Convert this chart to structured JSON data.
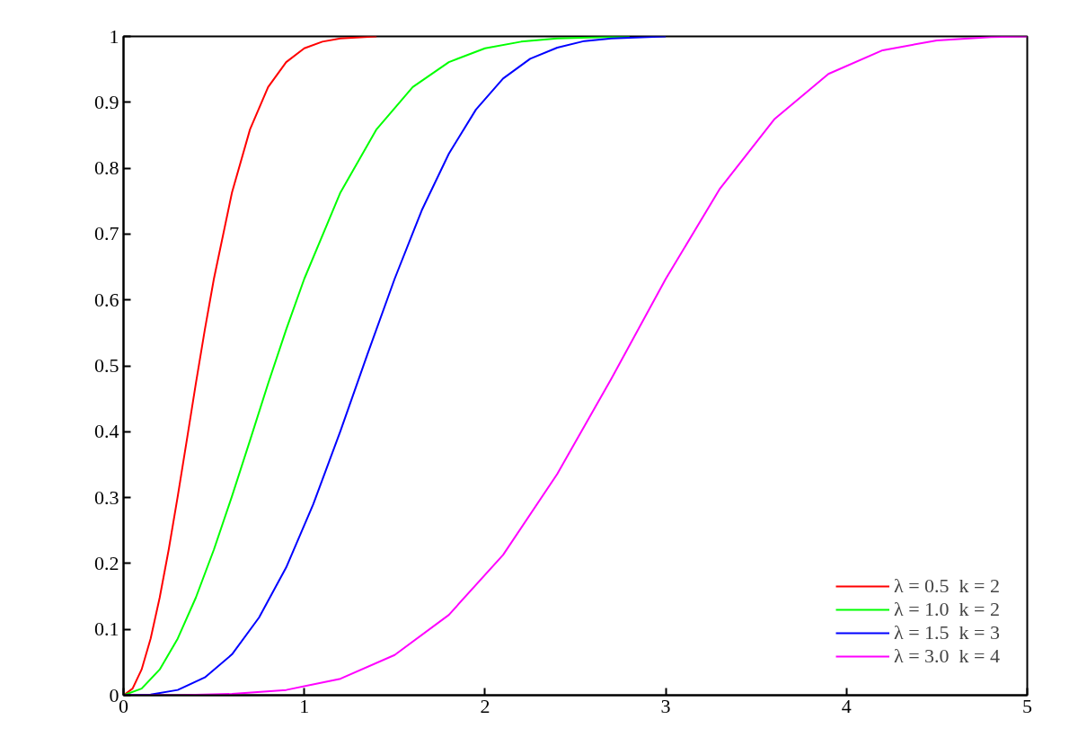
{
  "chart_data": {
    "type": "line",
    "xlim": [
      0,
      5
    ],
    "ylim": [
      0,
      1
    ],
    "xticks": [
      0,
      1,
      2,
      3,
      4,
      5
    ],
    "yticks": [
      0,
      0.1,
      0.2,
      0.3,
      0.4,
      0.5,
      0.6,
      0.7,
      0.8,
      0.9,
      1
    ],
    "grid": false,
    "legend": "bottom right",
    "marker": "none",
    "line_style": "solid",
    "series": [
      {
        "name": "λ = 0.5  k = 2",
        "color": "#ff0000",
        "x": [
          0,
          0.05,
          0.1,
          0.15,
          0.2,
          0.25,
          0.3,
          0.35,
          0.4,
          0.45,
          0.5,
          0.6,
          0.7,
          0.8,
          0.9,
          1.0,
          1.1,
          1.2,
          1.4
        ],
        "values": [
          0,
          0.01,
          0.039,
          0.086,
          0.148,
          0.221,
          0.302,
          0.387,
          0.473,
          0.555,
          0.632,
          0.763,
          0.859,
          0.923,
          0.961,
          0.982,
          0.992,
          0.997,
          1.0
        ]
      },
      {
        "name": "λ = 1.0  k = 2",
        "color": "#00ff00",
        "x": [
          0,
          0.1,
          0.2,
          0.3,
          0.4,
          0.5,
          0.6,
          0.7,
          0.8,
          0.9,
          1.0,
          1.2,
          1.4,
          1.6,
          1.8,
          2.0,
          2.2,
          2.4,
          2.8
        ],
        "values": [
          0,
          0.01,
          0.039,
          0.086,
          0.148,
          0.221,
          0.302,
          0.387,
          0.473,
          0.555,
          0.632,
          0.763,
          0.859,
          0.923,
          0.961,
          0.982,
          0.992,
          0.997,
          1.0
        ]
      },
      {
        "name": "λ = 1.5  k = 3",
        "color": "#0000ff",
        "x": [
          0,
          0.15,
          0.3,
          0.45,
          0.6,
          0.75,
          0.9,
          1.05,
          1.2,
          1.35,
          1.5,
          1.65,
          1.8,
          1.95,
          2.1,
          2.25,
          2.4,
          2.55,
          2.7,
          3.0
        ],
        "values": [
          0,
          0.001,
          0.008,
          0.027,
          0.062,
          0.118,
          0.194,
          0.29,
          0.401,
          0.518,
          0.632,
          0.736,
          0.822,
          0.889,
          0.936,
          0.966,
          0.983,
          0.993,
          0.997,
          1.0
        ]
      },
      {
        "name": "λ = 3.0  k = 4",
        "color": "#ff00ff",
        "x": [
          0,
          0.3,
          0.6,
          0.9,
          1.2,
          1.5,
          1.8,
          2.1,
          2.4,
          2.7,
          3.0,
          3.3,
          3.6,
          3.9,
          4.2,
          4.5,
          4.8,
          5
        ],
        "values": [
          0,
          0,
          0.002,
          0.008,
          0.025,
          0.061,
          0.122,
          0.213,
          0.336,
          0.481,
          0.632,
          0.769,
          0.874,
          0.943,
          0.979,
          0.994,
          0.999,
          1.0
        ]
      }
    ]
  }
}
